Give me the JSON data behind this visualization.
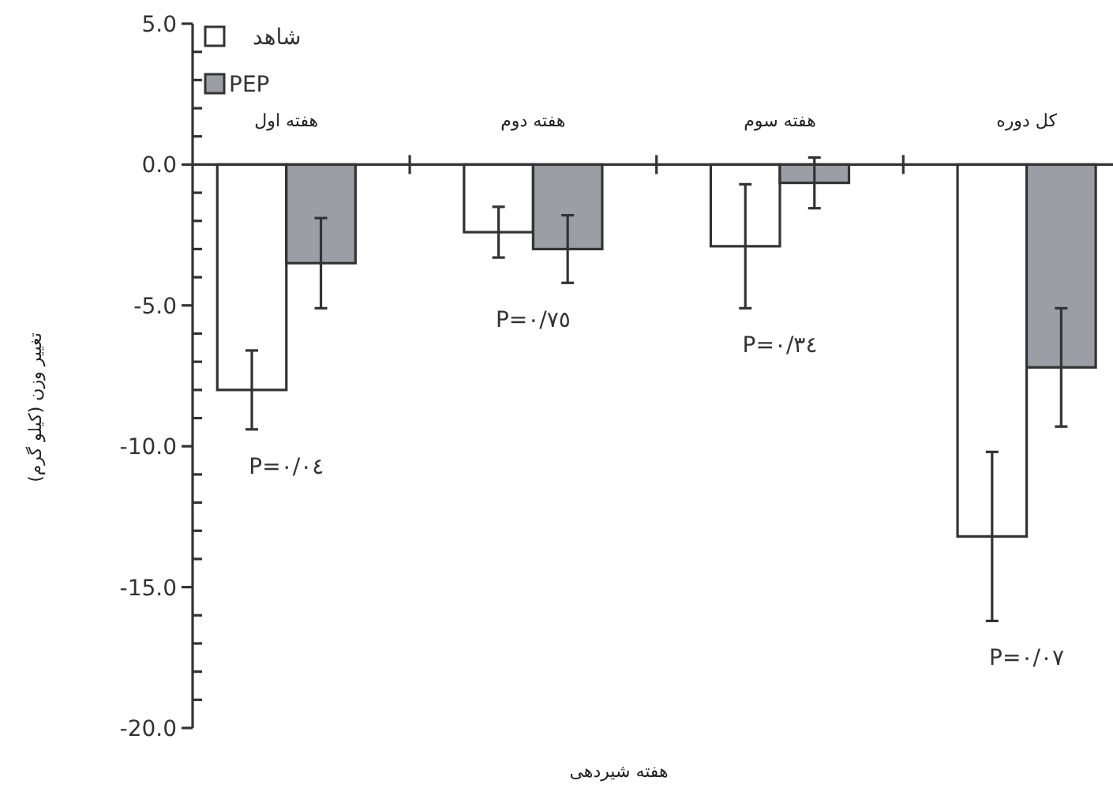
{
  "chart_data": {
    "type": "bar",
    "xlabel": "هفته شیردهی",
    "ylabel": "تغییر وزن (کیلو گرم)",
    "categories": [
      "هفته اول",
      "هفته دوم",
      "هفته سوم",
      "کل دوره"
    ],
    "series": [
      {
        "name": "شاهد",
        "color": "#ffffff",
        "values": [
          -8.0,
          -2.4,
          -2.9,
          -13.2
        ],
        "errors": [
          1.4,
          0.9,
          2.2,
          3.0
        ]
      },
      {
        "name": "PEP",
        "color": "#9b9fa5",
        "values": [
          -3.5,
          -3.0,
          -0.65,
          -7.2
        ],
        "errors": [
          1.6,
          1.2,
          0.9,
          2.1
        ]
      }
    ],
    "ylim": [
      -20,
      5
    ],
    "yticks": [
      {
        "value": 5,
        "label": "5.0"
      },
      {
        "value": 4,
        "label": null
      },
      {
        "value": 3,
        "label": null
      },
      {
        "value": 2,
        "label": null
      },
      {
        "value": 1,
        "label": null
      },
      {
        "value": 0,
        "label": "0.0"
      },
      {
        "value": -1,
        "label": null
      },
      {
        "value": -2,
        "label": null
      },
      {
        "value": -3,
        "label": null
      },
      {
        "value": -4,
        "label": null
      },
      {
        "value": -5,
        "label": "-5.0"
      },
      {
        "value": -6,
        "label": null
      },
      {
        "value": -7,
        "label": null
      },
      {
        "value": -8,
        "label": null
      },
      {
        "value": -9,
        "label": null
      },
      {
        "value": -10,
        "label": "-10.0"
      },
      {
        "value": -11,
        "label": null
      },
      {
        "value": -12,
        "label": null
      },
      {
        "value": -13,
        "label": null
      },
      {
        "value": -14,
        "label": null
      },
      {
        "value": -15,
        "label": "-15.0"
      },
      {
        "value": -16,
        "label": null
      },
      {
        "value": -17,
        "label": null
      },
      {
        "value": -18,
        "label": null
      },
      {
        "value": -19,
        "label": null
      },
      {
        "value": -20,
        "label": "-20.0"
      }
    ],
    "annotations": [
      "P=٠/٠٤",
      "P=٠/٧٥",
      "P=٠/٣٤",
      "P=٠/٠٧"
    ],
    "legend": "top left",
    "grid": false
  }
}
